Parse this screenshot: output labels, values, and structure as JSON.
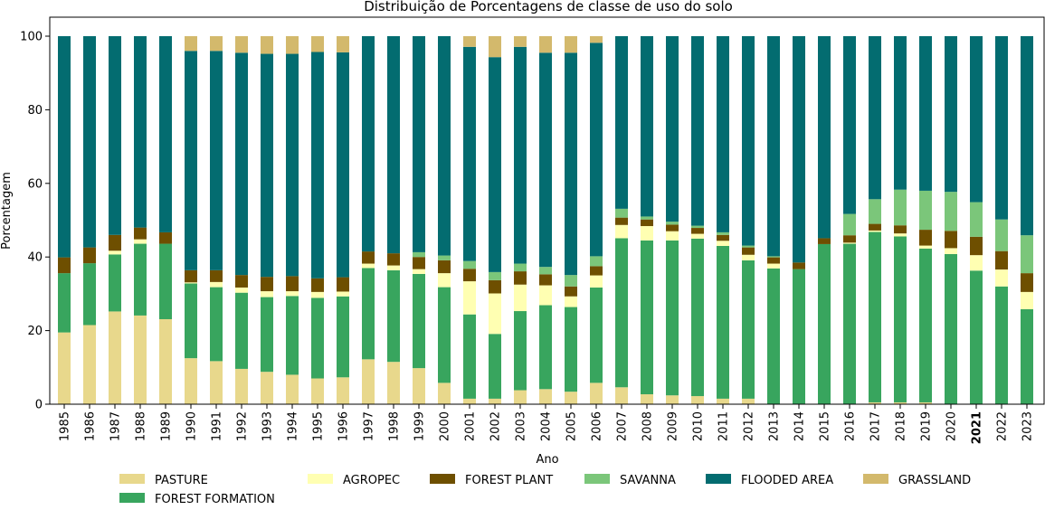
{
  "chart_data": {
    "type": "bar",
    "stacked": true,
    "title": "Distribuição de Porcentagens de classe de uso do solo",
    "xlabel": "Ano",
    "ylabel": "Porcentagem",
    "ylim": [
      0,
      100
    ],
    "yticks": [
      0,
      20,
      40,
      60,
      80,
      100
    ],
    "bold_category": "2021",
    "legend_position": "bottom",
    "categories": [
      "1985",
      "1986",
      "1987",
      "1988",
      "1989",
      "1990",
      "1991",
      "1992",
      "1993",
      "1994",
      "1995",
      "1996",
      "1997",
      "1998",
      "1999",
      "2000",
      "2001",
      "2002",
      "2003",
      "2004",
      "2005",
      "2006",
      "2007",
      "2008",
      "2009",
      "2010",
      "2011",
      "2012",
      "2013",
      "2014",
      "2015",
      "2016",
      "2017",
      "2018",
      "2019",
      "2020",
      "2021",
      "2022",
      "2023"
    ],
    "series": [
      {
        "name": "PASTURE",
        "color": "#e8d88c",
        "values": [
          19.5,
          21.5,
          25.2,
          24.1,
          23.1,
          12.5,
          11.7,
          9.6,
          8.8,
          8.0,
          7.0,
          7.3,
          12.2,
          11.5,
          9.8,
          5.8,
          1.5,
          1.5,
          3.8,
          4.1,
          3.4,
          5.8,
          4.6,
          2.7,
          2.4,
          2.2,
          1.5,
          1.5,
          0,
          0,
          0,
          0,
          0.5,
          0.5,
          0.5,
          0,
          0,
          0,
          0
        ]
      },
      {
        "name": "FOREST FORMATION",
        "color": "#38a55e",
        "values": [
          16.1,
          16.8,
          15.5,
          19.5,
          20.5,
          20.3,
          20.1,
          20.7,
          20.3,
          21.4,
          21.9,
          22.0,
          24.8,
          24.9,
          25.6,
          26.0,
          22.9,
          17.6,
          21.5,
          22.8,
          23.0,
          25.9,
          40.5,
          41.8,
          42.1,
          42.8,
          41.5,
          37.6,
          36.9,
          36.7,
          43.5,
          43.6,
          46.3,
          45.1,
          41.8,
          40.8,
          36.3,
          32.0,
          25.8
        ]
      },
      {
        "name": "AGROPEC",
        "color": "#ffffb2",
        "values": [
          0,
          0,
          1.0,
          1.2,
          0,
          0.3,
          1.4,
          1.4,
          1.6,
          1.3,
          1.6,
          1.3,
          1.2,
          1.3,
          1.3,
          3.8,
          9.0,
          11.0,
          7.2,
          5.4,
          2.9,
          3.3,
          3.6,
          3.9,
          2.5,
          1.3,
          1.4,
          1.5,
          1.3,
          0,
          0,
          0.3,
          0.4,
          0.8,
          0.8,
          1.6,
          4.2,
          4.6,
          4.7
        ]
      },
      {
        "name": "FOREST PLANT",
        "color": "#6e4f00",
        "values": [
          4.3,
          4.3,
          4.3,
          3.2,
          3.1,
          3.3,
          3.2,
          3.4,
          3.9,
          4.1,
          3.7,
          3.9,
          3.3,
          3.3,
          3.3,
          3.5,
          3.4,
          3.6,
          3.6,
          3.0,
          2.7,
          2.5,
          2.0,
          1.8,
          1.8,
          1.6,
          1.6,
          2.0,
          1.7,
          1.8,
          1.6,
          2.0,
          1.8,
          2.2,
          4.3,
          4.7,
          5.0,
          5.0,
          5.1
        ]
      },
      {
        "name": "SAVANNA",
        "color": "#7bc67a",
        "values": [
          0,
          0,
          0,
          0,
          0,
          0,
          0,
          0,
          0,
          0,
          0,
          0,
          0,
          0,
          1.3,
          1.3,
          2.1,
          2.2,
          2.1,
          2.0,
          3.1,
          2.7,
          2.4,
          0.8,
          0.8,
          0.6,
          0.7,
          0.5,
          0.3,
          0,
          0,
          5.8,
          6.7,
          9.7,
          10.6,
          10.6,
          9.4,
          8.6,
          10.3
        ]
      },
      {
        "name": "FLOODED AREA",
        "color": "#036c70",
        "values": [
          60.1,
          57.4,
          54.0,
          52.0,
          53.3,
          59.6,
          59.6,
          60.4,
          60.6,
          60.4,
          61.5,
          61.1,
          58.5,
          59.0,
          58.7,
          59.6,
          58.2,
          58.4,
          58.9,
          58.2,
          60.4,
          58.0,
          46.9,
          49.0,
          50.4,
          51.5,
          53.3,
          56.9,
          59.8,
          61.5,
          54.9,
          48.3,
          44.3,
          41.7,
          42.0,
          42.3,
          45.1,
          49.8,
          54.1
        ]
      },
      {
        "name": "GRASSLAND",
        "color": "#d3b96c",
        "values": [
          0,
          0,
          0,
          0,
          0,
          4.0,
          4.0,
          4.5,
          4.8,
          4.8,
          4.3,
          4.4,
          0,
          0,
          0,
          0,
          2.9,
          5.7,
          2.9,
          4.5,
          4.5,
          1.8,
          0,
          0,
          0,
          0,
          0,
          0,
          0,
          0,
          0,
          0,
          0,
          0,
          0,
          0,
          0,
          0,
          0
        ]
      }
    ]
  }
}
